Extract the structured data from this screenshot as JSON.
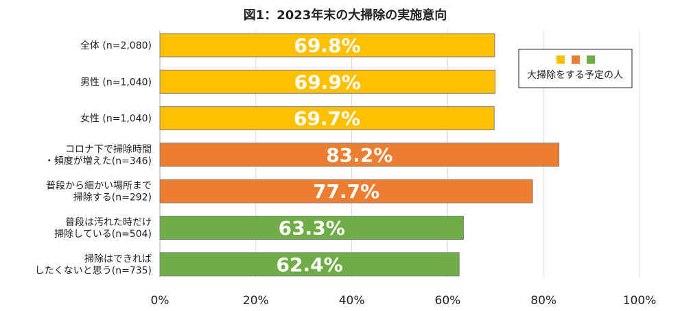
{
  "chart_data": {
    "type": "bar",
    "orientation": "horizontal",
    "title": "図1：2023年末の大掃除の実施意向",
    "xlabel": "",
    "ylabel": "",
    "xlim": [
      0,
      100
    ],
    "x_ticks": [
      "0%",
      "20%",
      "40%",
      "60%",
      "80%",
      "100%"
    ],
    "grid": true,
    "legend_position": "top-right",
    "legend": {
      "label": "大掃除をする予定の人",
      "colors": [
        "#FFC000",
        "#ED7D31",
        "#70AD47"
      ]
    },
    "categories": [
      [
        "全体 (n=2,080)"
      ],
      [
        "男性 (n=1,040)"
      ],
      [
        "女性 (n=1,040)"
      ],
      [
        "コロナ下で掃除時間",
        "・頻度が増えた(n=346)"
      ],
      [
        "普段から細かい場所まで",
        "掃除する(n=292)"
      ],
      [
        "普段は汚れた時だけ",
        "掃除している(n=504)"
      ],
      [
        "掃除はできれば",
        "したくないと思う(n=735)"
      ]
    ],
    "values": [
      69.8,
      69.9,
      69.7,
      83.2,
      77.7,
      63.3,
      62.4
    ],
    "value_labels": [
      "69.8%",
      "69.9%",
      "69.7%",
      "83.2%",
      "77.7%",
      "63.3%",
      "62.4%"
    ],
    "bar_colors": [
      "#FFC000",
      "#FFC000",
      "#FFC000",
      "#ED7D31",
      "#ED7D31",
      "#70AD47",
      "#70AD47"
    ],
    "gridline_color": "#D9D9D9",
    "bar_border_color": "#7F7F7F"
  }
}
